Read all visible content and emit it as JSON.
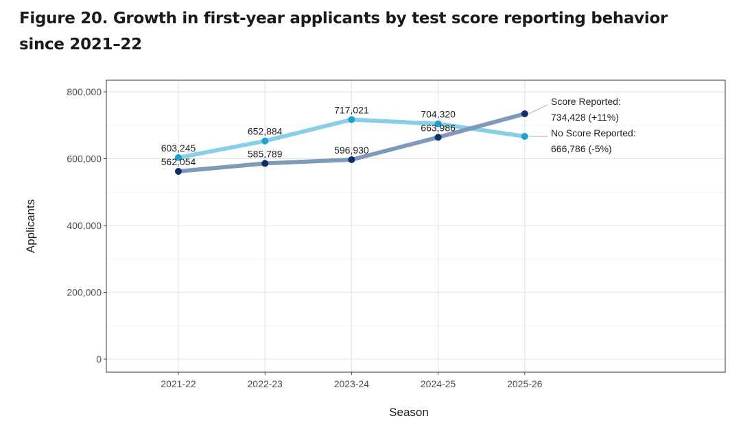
{
  "chart_data": {
    "type": "line",
    "title": "Figure 20. Growth in first-year applicants by test score reporting behavior since 2021–22",
    "xlabel": "Season",
    "ylabel": "Applicants",
    "categories": [
      "2021-22",
      "2022-23",
      "2023-24",
      "2024-25",
      "2025-26"
    ],
    "ylim": [
      0,
      800000
    ],
    "yticks": [
      0,
      200000,
      400000,
      600000,
      800000
    ],
    "ytick_labels": [
      "0",
      "200,000",
      "400,000",
      "600,000",
      "800,000"
    ],
    "grid": true,
    "legend": "none",
    "series": [
      {
        "name": "No Score Reported",
        "values": [
          603245,
          652884,
          717021,
          704320,
          666786
        ],
        "labels": [
          "603,245",
          "652,884",
          "717,021",
          "704,320",
          ""
        ],
        "annotation": [
          "No Score Reported:",
          "666,786 (-5%)"
        ],
        "line_color": "#86cfe6",
        "point_color": "#1ba3cf"
      },
      {
        "name": "Score Reported",
        "values": [
          562054,
          585789,
          596930,
          663986,
          734428
        ],
        "labels": [
          "562,054",
          "585,789",
          "596,930",
          "663,986",
          ""
        ],
        "annotation": [
          "Score Reported:",
          "734,428 (+11%)"
        ],
        "line_color": "#7f99b9",
        "point_color": "#0b2f66"
      }
    ]
  }
}
